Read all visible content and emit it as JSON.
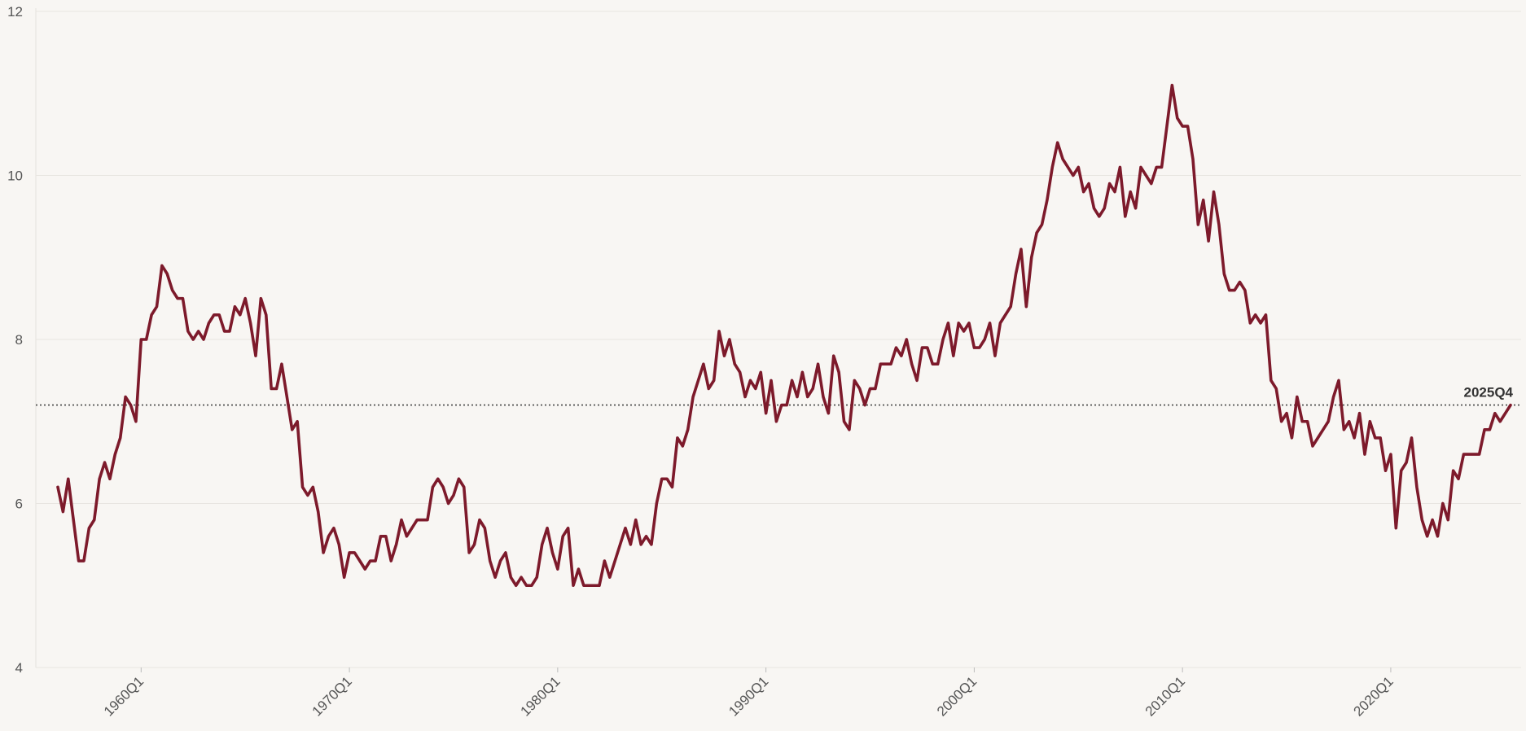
{
  "chart_data": {
    "type": "line",
    "categories": [
      null,
      null,
      null,
      null,
      null,
      null,
      null,
      null,
      null,
      null,
      null,
      null,
      null,
      null,
      null,
      null,
      "1960Q1",
      null,
      null,
      null,
      null,
      null,
      null,
      null,
      null,
      null,
      null,
      null,
      null,
      null,
      null,
      null,
      null,
      null,
      null,
      null,
      null,
      null,
      null,
      null,
      null,
      null,
      null,
      null,
      null,
      null,
      null,
      null,
      null,
      null,
      null,
      null,
      null,
      null,
      null,
      null,
      "1970Q1",
      null,
      null,
      null,
      null,
      null,
      null,
      null,
      null,
      null,
      null,
      null,
      null,
      null,
      null,
      null,
      null,
      null,
      null,
      null,
      null,
      null,
      null,
      null,
      null,
      null,
      null,
      null,
      null,
      null,
      null,
      null,
      null,
      null,
      null,
      null,
      null,
      null,
      null,
      null,
      "1980Q1",
      null,
      null,
      null,
      null,
      null,
      null,
      null,
      null,
      null,
      null,
      null,
      null,
      null,
      null,
      null,
      null,
      null,
      null,
      null,
      null,
      null,
      null,
      null,
      null,
      null,
      null,
      null,
      null,
      null,
      null,
      null,
      null,
      null,
      null,
      null,
      null,
      null,
      null,
      null,
      "1990Q1",
      null,
      null,
      null,
      null,
      null,
      null,
      null,
      null,
      null,
      null,
      null,
      null,
      null,
      null,
      null,
      null,
      null,
      null,
      null,
      null,
      null,
      null,
      null,
      null,
      null,
      null,
      null,
      null,
      null,
      null,
      null,
      null,
      null,
      null,
      null,
      null,
      null,
      null,
      null,
      "2000Q1",
      null,
      null,
      null,
      null,
      null,
      null,
      null,
      null,
      null,
      null,
      null,
      null,
      null,
      null,
      null,
      null,
      null,
      null,
      null,
      null,
      null,
      null,
      null,
      null,
      null,
      null,
      null,
      null,
      null,
      null,
      null,
      null,
      null,
      null,
      null,
      null,
      null,
      null,
      null,
      "2010Q1",
      null,
      null,
      null,
      null,
      null,
      null,
      null,
      null,
      null,
      null,
      null,
      null,
      null,
      null,
      null,
      null,
      null,
      null,
      null,
      null,
      null,
      null,
      null,
      null,
      null,
      null,
      null,
      null,
      null,
      null,
      null,
      null,
      null,
      null,
      null,
      null,
      null,
      null,
      null,
      "2020Q1",
      null,
      null,
      null,
      null,
      null,
      null,
      null,
      null,
      null,
      null,
      null,
      null,
      null,
      null,
      null,
      null,
      null,
      null,
      null,
      null,
      null,
      null,
      null
    ],
    "series": [
      {
        "color": "#7d1a2b",
        "values": [
          6.2,
          5.9,
          6.3,
          5.8,
          5.3,
          5.3,
          5.7,
          5.8,
          6.3,
          6.5,
          6.3,
          6.6,
          6.8,
          7.3,
          7.2,
          7.0,
          8.0,
          8.0,
          8.3,
          8.4,
          8.9,
          8.8,
          8.6,
          8.5,
          8.5,
          8.1,
          8.0,
          8.1,
          8.0,
          8.2,
          8.3,
          8.3,
          8.1,
          8.1,
          8.4,
          8.3,
          8.5,
          8.2,
          7.8,
          8.5,
          8.3,
          7.4,
          7.4,
          7.7,
          7.3,
          6.9,
          7.0,
          6.2,
          6.1,
          6.2,
          5.9,
          5.4,
          5.6,
          5.7,
          5.5,
          5.1,
          5.4,
          5.4,
          5.3,
          5.2,
          5.3,
          5.3,
          5.6,
          5.6,
          5.3,
          5.5,
          5.8,
          5.6,
          5.7,
          5.8,
          5.8,
          5.8,
          6.2,
          6.3,
          6.2,
          6.0,
          6.1,
          6.3,
          6.2,
          5.4,
          5.5,
          5.8,
          5.7,
          5.3,
          5.1,
          5.3,
          5.4,
          5.1,
          5.0,
          5.1,
          5.0,
          5.0,
          5.1,
          5.5,
          5.7,
          5.4,
          5.2,
          5.6,
          5.7,
          5.0,
          5.2,
          5.0,
          5.0,
          5.0,
          5.0,
          5.3,
          5.1,
          5.3,
          5.5,
          5.7,
          5.5,
          5.8,
          5.5,
          5.6,
          5.5,
          6.0,
          6.3,
          6.3,
          6.2,
          6.8,
          6.7,
          6.9,
          7.3,
          7.5,
          7.7,
          7.4,
          7.5,
          8.1,
          7.8,
          8.0,
          7.7,
          7.6,
          7.3,
          7.5,
          7.4,
          7.6,
          7.1,
          7.5,
          7.0,
          7.2,
          7.2,
          7.5,
          7.3,
          7.6,
          7.3,
          7.4,
          7.7,
          7.3,
          7.1,
          7.8,
          7.6,
          7.0,
          6.9,
          7.5,
          7.4,
          7.2,
          7.4,
          7.4,
          7.7,
          7.7,
          7.7,
          7.9,
          7.8,
          8.0,
          7.7,
          7.5,
          7.9,
          7.9,
          7.7,
          7.7,
          8.0,
          8.2,
          7.8,
          8.2,
          8.1,
          8.2,
          7.9,
          7.9,
          8.0,
          8.2,
          7.8,
          8.2,
          8.3,
          8.4,
          8.8,
          9.1,
          8.4,
          9.0,
          9.3,
          9.4,
          9.7,
          10.1,
          10.4,
          10.2,
          10.1,
          10.0,
          10.1,
          9.8,
          9.9,
          9.6,
          9.5,
          9.6,
          9.9,
          9.8,
          10.1,
          9.5,
          9.8,
          9.6,
          10.1,
          10.0,
          9.9,
          10.1,
          10.1,
          10.6,
          11.1,
          10.7,
          10.6,
          10.6,
          10.2,
          9.4,
          9.7,
          9.2,
          9.8,
          9.4,
          8.8,
          8.6,
          8.6,
          8.7,
          8.6,
          8.2,
          8.3,
          8.2,
          8.3,
          7.5,
          7.4,
          7.0,
          7.1,
          6.8,
          7.3,
          7.0,
          7.0,
          6.7,
          6.8,
          6.9,
          7.0,
          7.3,
          7.5,
          6.9,
          7.0,
          6.8,
          7.1,
          6.6,
          7.0,
          6.8,
          6.8,
          6.4,
          6.6,
          5.7,
          6.4,
          6.5,
          6.8,
          6.2,
          5.8,
          5.6,
          5.8,
          5.6,
          6.0,
          5.8,
          6.4,
          6.3,
          6.6,
          6.6,
          6.6,
          6.6,
          6.9,
          6.9,
          7.1,
          7.0,
          7.1,
          7.2
        ]
      }
    ],
    "ylim": [
      4,
      12
    ],
    "yticks": [
      4,
      6,
      8,
      10,
      12
    ],
    "grid": true,
    "annotation": {
      "text": "2025Q4",
      "value": 7.2
    }
  }
}
